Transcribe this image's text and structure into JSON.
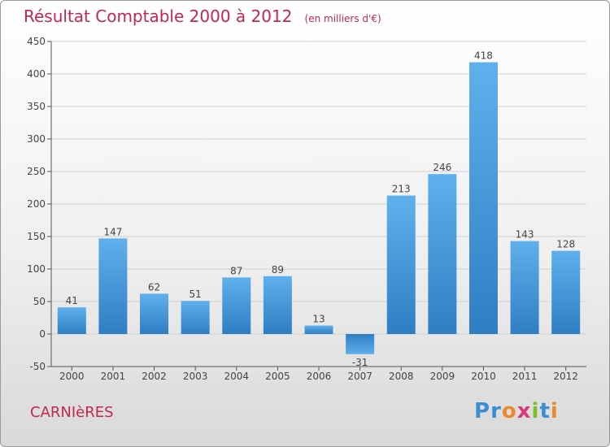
{
  "chart_data": {
    "type": "bar",
    "title": "Résultat Comptable 2000 à 2012",
    "subtitle": "(en milliers d'€)",
    "categories": [
      "2000",
      "2001",
      "2002",
      "2003",
      "2004",
      "2005",
      "2006",
      "2007",
      "2008",
      "2009",
      "2010",
      "2011",
      "2012"
    ],
    "values": [
      41,
      147,
      62,
      51,
      87,
      89,
      13,
      -31,
      213,
      246,
      418,
      143,
      128
    ],
    "ylim": [
      -50,
      450
    ],
    "yticks": [
      -50,
      0,
      50,
      100,
      150,
      200,
      250,
      300,
      350,
      400,
      450
    ],
    "grid": true,
    "bar_color": "#3d8fd6"
  },
  "commune": "CARNIèRES",
  "logo": {
    "letters": [
      {
        "ch": "P",
        "color": "#3a8fd3"
      },
      {
        "ch": "r",
        "color": "#3a8fd3"
      },
      {
        "ch": "o",
        "color": "#e8892c"
      },
      {
        "ch": "x",
        "color": "#d93a7a"
      },
      {
        "ch": "i",
        "color": "#7bbf2a"
      },
      {
        "ch": "t",
        "color": "#3a8fd3"
      },
      {
        "ch": "i",
        "color": "#e8892c"
      }
    ]
  }
}
